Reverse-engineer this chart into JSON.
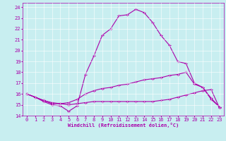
{
  "xlabel": "Windchill (Refroidissement éolien,°C)",
  "xlim": [
    -0.5,
    23.5
  ],
  "ylim": [
    14,
    24.4
  ],
  "xticks": [
    0,
    1,
    2,
    3,
    4,
    5,
    6,
    7,
    8,
    9,
    10,
    11,
    12,
    13,
    14,
    15,
    16,
    17,
    18,
    19,
    20,
    21,
    22,
    23
  ],
  "yticks": [
    14,
    15,
    16,
    17,
    18,
    19,
    20,
    21,
    22,
    23,
    24
  ],
  "bg_color": "#c8eef0",
  "line_color": "#aa00aa",
  "line1_x": [
    0,
    1,
    2,
    3,
    4,
    5,
    6,
    7,
    8,
    9,
    10,
    11,
    12,
    13,
    14,
    15,
    16,
    17,
    18,
    19,
    20,
    21,
    22,
    23
  ],
  "line1_y": [
    16.0,
    15.7,
    15.3,
    15.0,
    14.9,
    14.4,
    14.9,
    17.8,
    19.5,
    21.4,
    22.0,
    23.2,
    23.3,
    23.8,
    23.5,
    22.6,
    21.4,
    20.5,
    19.0,
    18.8,
    17.0,
    16.6,
    15.5,
    14.8
  ],
  "line2_x": [
    0,
    1,
    2,
    3,
    4,
    5,
    6,
    7,
    8,
    9,
    10,
    11,
    12,
    13,
    14,
    15,
    16,
    17,
    18,
    19,
    20,
    21,
    22,
    23
  ],
  "line2_y": [
    16.0,
    15.7,
    15.4,
    15.1,
    15.1,
    15.2,
    15.5,
    16.0,
    16.3,
    16.5,
    16.6,
    16.8,
    16.9,
    17.1,
    17.3,
    17.4,
    17.5,
    17.7,
    17.8,
    18.0,
    16.9,
    16.6,
    15.6,
    14.8
  ],
  "line3_x": [
    0,
    1,
    2,
    3,
    4,
    5,
    6,
    7,
    8,
    9,
    10,
    11,
    12,
    13,
    14,
    15,
    16,
    17,
    18,
    19,
    20,
    21,
    22,
    23
  ],
  "line3_y": [
    16.0,
    15.7,
    15.4,
    15.2,
    15.1,
    15.0,
    15.1,
    15.2,
    15.3,
    15.3,
    15.3,
    15.3,
    15.3,
    15.3,
    15.3,
    15.3,
    15.4,
    15.5,
    15.7,
    15.9,
    16.1,
    16.3,
    16.4,
    14.7
  ],
  "tick_fontsize": 5,
  "label_fontsize": 5,
  "lw1": 0.8,
  "lw2": 0.8,
  "lw3": 0.8,
  "marker_size": 2.5
}
